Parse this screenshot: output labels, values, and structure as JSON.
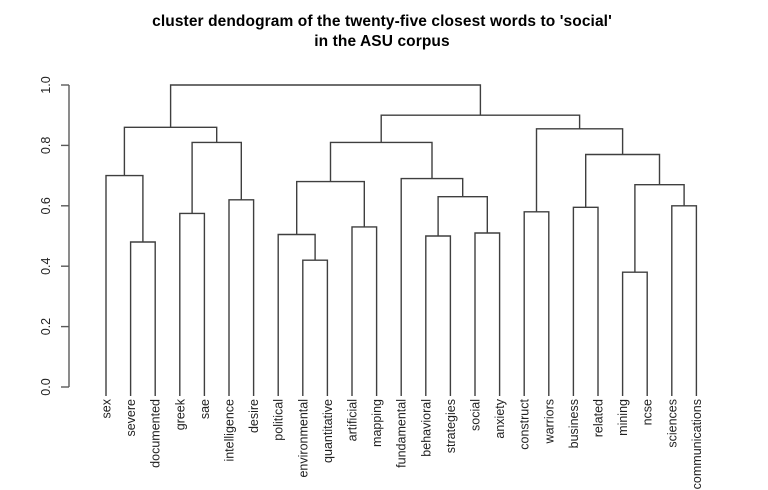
{
  "chart_data": {
    "type": "dendrogram",
    "title_line1": "cluster dendogram of the twenty-five closest words to 'social'",
    "title_line2": "in the ASU corpus",
    "ylim": [
      0.0,
      1.0
    ],
    "ytick_labels": [
      "0.0",
      "0.2",
      "0.4",
      "0.6",
      "0.8",
      "1.0"
    ],
    "ytick_values": [
      0.0,
      0.2,
      0.4,
      0.6,
      0.8,
      1.0
    ],
    "grid": false,
    "legend": "none",
    "leaves": [
      "sex",
      "severe",
      "documented",
      "greek",
      "sae",
      "intelligence",
      "desire",
      "political",
      "environmental",
      "quantitative",
      "artificial",
      "mapping",
      "fundamental",
      "behavioral",
      "strategies",
      "social",
      "anxiety",
      "construct",
      "warriors",
      "business",
      "related",
      "mining",
      "ncse",
      "sciences",
      "communications"
    ],
    "tree": {
      "h": 1.0,
      "c": [
        {
          "h": 0.86,
          "c": [
            {
              "h": 0.7,
              "c": [
                "sex",
                {
                  "h": 0.48,
                  "c": [
                    "severe",
                    "documented"
                  ]
                }
              ]
            },
            {
              "h": 0.81,
              "c": [
                {
                  "h": 0.575,
                  "c": [
                    "greek",
                    "sae"
                  ]
                },
                {
                  "h": 0.62,
                  "c": [
                    "intelligence",
                    "desire"
                  ]
                }
              ]
            }
          ]
        },
        {
          "h": 0.9,
          "c": [
            {
              "h": 0.81,
              "c": [
                {
                  "h": 0.68,
                  "c": [
                    {
                      "h": 0.505,
                      "c": [
                        "political",
                        {
                          "h": 0.42,
                          "c": [
                            "environmental",
                            "quantitative"
                          ]
                        }
                      ]
                    },
                    {
                      "h": 0.53,
                      "c": [
                        "artificial",
                        "mapping"
                      ]
                    }
                  ]
                },
                {
                  "h": 0.69,
                  "c": [
                    "fundamental",
                    {
                      "h": 0.63,
                      "c": [
                        {
                          "h": 0.5,
                          "c": [
                            "behavioral",
                            "strategies"
                          ]
                        },
                        {
                          "h": 0.51,
                          "c": [
                            "social",
                            "anxiety"
                          ]
                        }
                      ]
                    }
                  ]
                }
              ]
            },
            {
              "h": 0.855,
              "c": [
                {
                  "h": 0.58,
                  "c": [
                    "construct",
                    "warriors"
                  ]
                },
                {
                  "h": 0.77,
                  "c": [
                    {
                      "h": 0.595,
                      "c": [
                        "business",
                        "related"
                      ]
                    },
                    {
                      "h": 0.67,
                      "c": [
                        {
                          "h": 0.38,
                          "c": [
                            "mining",
                            "ncse"
                          ]
                        },
                        {
                          "h": 0.6,
                          "c": [
                            "sciences",
                            "communications"
                          ]
                        }
                      ]
                    }
                  ]
                }
              ]
            }
          ]
        }
      ]
    },
    "colors": {
      "line": "#3f3f3f",
      "axis": "#5a5a5a",
      "text": "#1f1f1f",
      "title": "#000000",
      "background": "#ffffff"
    }
  }
}
